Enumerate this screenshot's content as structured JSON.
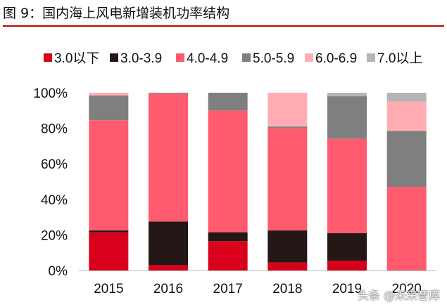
{
  "figure": {
    "title": "图 9：国内海上风电新增装机功率结构"
  },
  "watermark": "头条 @未来智库",
  "chart_data": {
    "type": "bar",
    "stacked": true,
    "categories": [
      "2015",
      "2016",
      "2017",
      "2018",
      "2019",
      "2020"
    ],
    "ylim": [
      0,
      100
    ],
    "yticks": [
      "0%",
      "20%",
      "40%",
      "60%",
      "80%",
      "100%"
    ],
    "grid": false,
    "legend_position": "top",
    "series": [
      {
        "name": "3.0以下",
        "color": "#d9001b",
        "values": [
          21.5,
          3,
          16.5,
          4.5,
          5.5,
          0
        ]
      },
      {
        "name": "3.0-3.9",
        "color": "#231815",
        "values": [
          1,
          24.5,
          5,
          18,
          15.5,
          0
        ]
      },
      {
        "name": "4.0-4.9",
        "color": "#ff5a6e",
        "values": [
          62,
          72,
          68.5,
          57.5,
          53,
          47
        ]
      },
      {
        "name": "5.0-5.9",
        "color": "#7f7f7f",
        "values": [
          14,
          0.5,
          10,
          1,
          24,
          31.5
        ]
      },
      {
        "name": "6.0-6.9",
        "color": "#ffadb2",
        "values": [
          1.5,
          0,
          0,
          19,
          0,
          16.5
        ]
      },
      {
        "name": "7.0以上",
        "color": "#b5b5b5",
        "values": [
          0,
          0,
          0,
          0,
          2,
          5
        ]
      }
    ]
  }
}
